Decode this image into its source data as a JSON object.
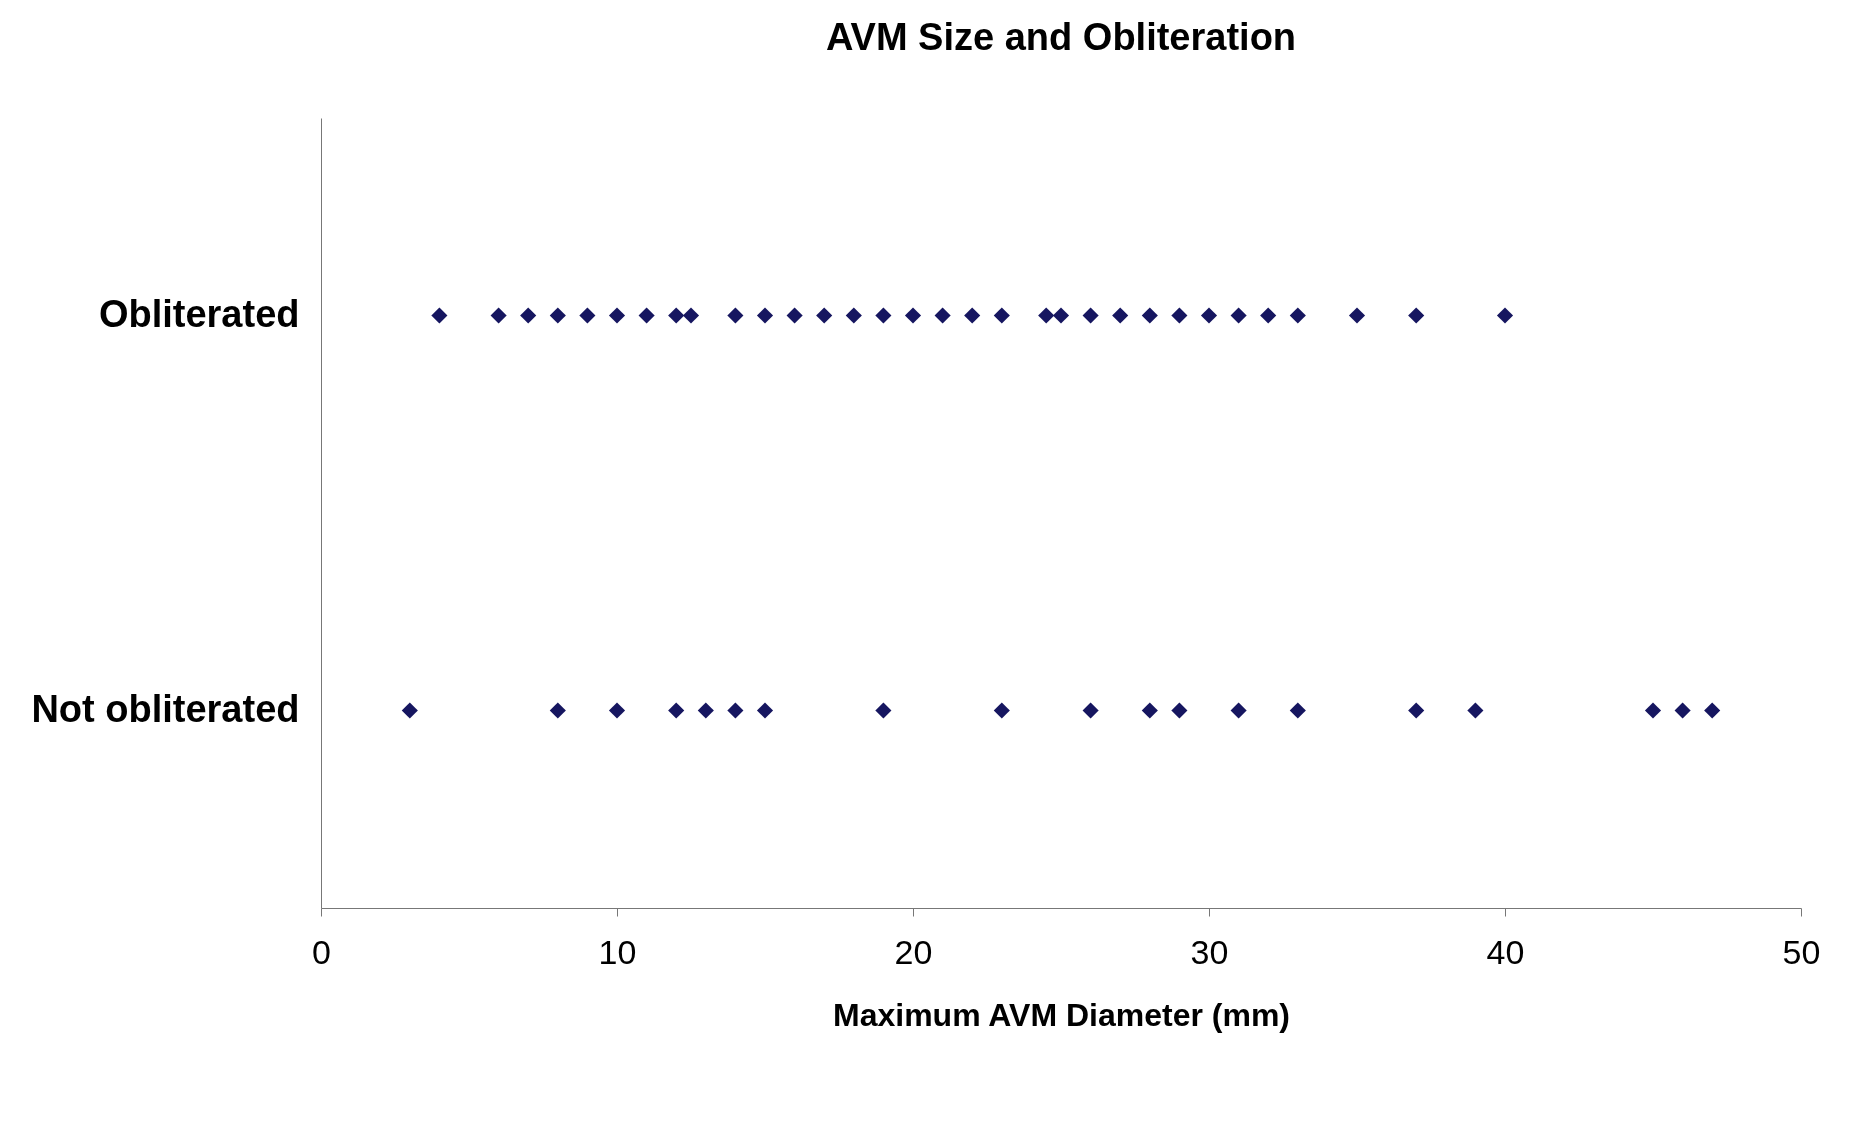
{
  "chart_data": {
    "type": "scatter",
    "title": "AVM Size and Obliteration",
    "xlabel": "Maximum AVM Diameter (mm)",
    "orientation": "horizontal",
    "categories": [
      "Obliterated",
      "Not obliterated"
    ],
    "xlim": [
      0,
      50
    ],
    "xticks": [
      0,
      10,
      20,
      30,
      40,
      50
    ],
    "marker": "diamond",
    "grid": false,
    "legend": false,
    "series": [
      {
        "color": "#161660",
        "values": [
          4,
          3
        ]
      },
      {
        "color": "#161660",
        "values": [
          6,
          8
        ]
      },
      {
        "color": "#161660",
        "values": [
          7,
          10
        ]
      },
      {
        "color": "#161660",
        "values": [
          8,
          12
        ]
      },
      {
        "color": "#161660",
        "values": [
          9,
          13
        ]
      },
      {
        "color": "#161660",
        "values": [
          10,
          14
        ]
      },
      {
        "color": "#161660",
        "values": [
          11,
          15
        ]
      },
      {
        "color": "#161660",
        "values": [
          12,
          19
        ]
      },
      {
        "color": "#161660",
        "values": [
          12.5,
          23
        ]
      },
      {
        "color": "#161660",
        "values": [
          14,
          26
        ]
      },
      {
        "color": "#161660",
        "values": [
          15,
          28
        ]
      },
      {
        "color": "#161660",
        "values": [
          16,
          29
        ]
      },
      {
        "color": "#161660",
        "values": [
          17,
          31
        ]
      },
      {
        "color": "#161660",
        "values": [
          18,
          33
        ]
      },
      {
        "color": "#161660",
        "values": [
          19,
          37
        ]
      },
      {
        "color": "#161660",
        "values": [
          20,
          39
        ]
      },
      {
        "color": "#161660",
        "values": [
          21,
          45
        ]
      },
      {
        "color": "#161660",
        "values": [
          22,
          46
        ]
      },
      {
        "color": "#161660",
        "values": [
          23,
          47
        ]
      },
      {
        "color": "#161660",
        "values": [
          24.5,
          null
        ]
      },
      {
        "color": "#161660",
        "values": [
          25,
          null
        ]
      },
      {
        "color": "#161660",
        "values": [
          26,
          null
        ]
      },
      {
        "color": "#161660",
        "values": [
          27,
          null
        ]
      },
      {
        "color": "#161660",
        "values": [
          28,
          null
        ]
      },
      {
        "color": "#161660",
        "values": [
          29,
          null
        ]
      },
      {
        "color": "#161660",
        "values": [
          30,
          null
        ]
      },
      {
        "color": "#161660",
        "values": [
          31,
          null
        ]
      },
      {
        "color": "#161660",
        "values": [
          32,
          null
        ]
      },
      {
        "color": "#161660",
        "values": [
          33,
          null
        ]
      },
      {
        "color": "#161660",
        "values": [
          35,
          null
        ]
      },
      {
        "color": "#161660",
        "values": [
          37,
          null
        ]
      },
      {
        "color": "#161660",
        "values": [
          40,
          null
        ]
      }
    ]
  }
}
